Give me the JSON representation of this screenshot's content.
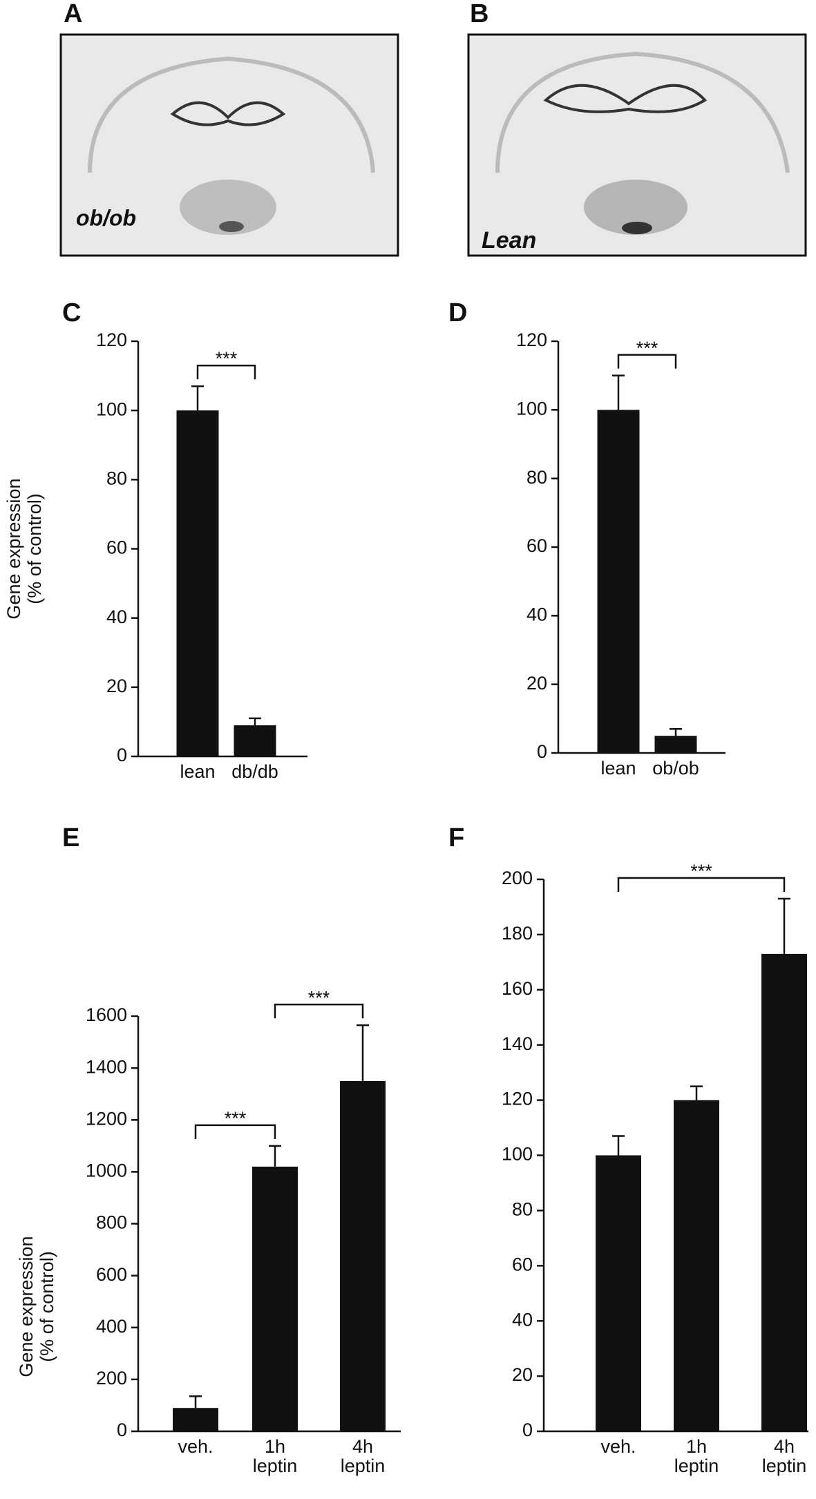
{
  "images": [
    {
      "panel": "A",
      "label": "ob/ob"
    },
    {
      "panel": "B",
      "label": "Lean"
    }
  ],
  "chart_data": [
    {
      "type": "bar",
      "panel": "C",
      "ylabel": [
        "Gene expression",
        "(% of control)"
      ],
      "categories": [
        "lean",
        "db/db"
      ],
      "values": [
        100,
        9
      ],
      "errors": [
        7,
        2
      ],
      "color": "#111111",
      "ylim": [
        0,
        120
      ],
      "yticks": [
        0,
        20,
        40,
        60,
        80,
        100,
        120
      ],
      "significance": [
        {
          "from": 0,
          "to": 1,
          "label": "***"
        }
      ]
    },
    {
      "type": "bar",
      "panel": "D",
      "categories": [
        "lean",
        "ob/ob"
      ],
      "values": [
        100,
        5
      ],
      "errors": [
        10,
        2
      ],
      "color": "#111111",
      "ylim": [
        0,
        120
      ],
      "yticks": [
        0,
        20,
        40,
        60,
        80,
        100,
        120
      ],
      "significance": [
        {
          "from": 0,
          "to": 1,
          "label": "***"
        }
      ]
    },
    {
      "type": "bar",
      "panel": "E",
      "ylabel": [
        "Gene expression",
        "(% of control)"
      ],
      "categories": [
        "veh.",
        "1h leptin",
        "4h leptin"
      ],
      "values": [
        90,
        1020,
        1350
      ],
      "errors": [
        45,
        80,
        215
      ],
      "color": "#111111",
      "ylim": [
        0,
        1600
      ],
      "yticks": [
        0,
        200,
        400,
        600,
        800,
        1000,
        1200,
        1400,
        1600
      ],
      "significance": [
        {
          "from": 0,
          "to": 1,
          "label": "***"
        },
        {
          "from": 1,
          "to": 2,
          "label": "***"
        }
      ]
    },
    {
      "type": "bar",
      "panel": "F",
      "categories": [
        "veh.",
        "1h leptin",
        "4h leptin"
      ],
      "values": [
        100,
        120,
        173
      ],
      "errors": [
        7,
        5,
        20
      ],
      "color": "#111111",
      "ylim": [
        0,
        200
      ],
      "yticks": [
        0,
        20,
        40,
        60,
        80,
        100,
        120,
        140,
        160,
        180,
        200
      ],
      "significance": [
        {
          "from": 0,
          "to": 2,
          "label": "***"
        }
      ]
    }
  ]
}
